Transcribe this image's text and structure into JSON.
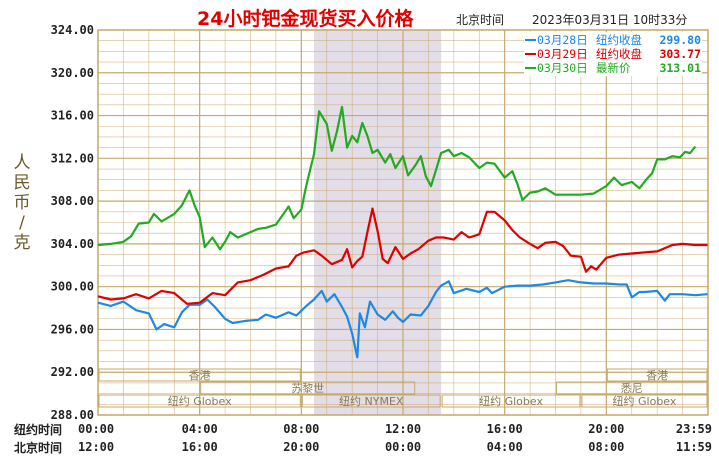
{
  "header": {
    "title": "24小时钯金现货买入价格",
    "tz_label": "北京时间",
    "timestamp": "2023年03月31日 10时33分"
  },
  "ylabel": "人民币/克",
  "row_labels": {
    "newyork": "纽约时间",
    "beijing": "北京时间"
  },
  "colors": {
    "mar28": "#1e88e5",
    "mar29": "#e00000",
    "mar30": "#22aa22",
    "title": "#e00000",
    "grid": "#c8a96a",
    "highlight": "#e2dde6"
  },
  "legend": [
    {
      "key": "mar28",
      "date": "03月28日",
      "label": "纽约收盘",
      "value": "299.80"
    },
    {
      "key": "mar29",
      "date": "03月29日",
      "label": "纽约收盘",
      "value": "303.77"
    },
    {
      "key": "mar30",
      "date": "03月30日",
      "label": "最新价",
      "value": "313.01"
    }
  ],
  "markets": [
    {
      "name": "香港",
      "from": 0,
      "to": 8
    },
    {
      "name": "苏黎世",
      "from": 4,
      "to": 12.5
    },
    {
      "name": "纽约 Globex",
      "from": 0,
      "to": 8
    },
    {
      "name": "纽约 NYMEX",
      "from": 8,
      "to": 13.5
    },
    {
      "name": "纽约 Globex",
      "from": 13.5,
      "to": 19
    },
    {
      "name": "香港",
      "from": 20,
      "to": 24
    },
    {
      "name": "悉尼",
      "from": 18,
      "to": 24
    },
    {
      "name": "纽约 Globex",
      "from": 19,
      "to": 24
    }
  ],
  "chart_data": {
    "type": "line",
    "x_unit": "hours since 纽约时间 00:00",
    "ylim": [
      288,
      324
    ],
    "yticks": [
      "324.00",
      "320.00",
      "316.00",
      "312.00",
      "308.00",
      "304.00",
      "300.00",
      "296.00",
      "292.00",
      "288.00"
    ],
    "xticks_ny": [
      "00:00",
      "04:00",
      "08:00",
      "12:00",
      "16:00",
      "20:00",
      "23:59"
    ],
    "xticks_bj": [
      "12:00",
      "16:00",
      "20:00",
      "00:00",
      "04:00",
      "08:00",
      "11:59"
    ],
    "highlight_range": [
      8.5,
      13.5
    ],
    "series": [
      {
        "name": "03月28日",
        "color_key": "mar28",
        "points": [
          [
            0,
            298.5
          ],
          [
            0.5,
            298.2
          ],
          [
            1,
            298.6
          ],
          [
            1.5,
            297.8
          ],
          [
            2,
            297.5
          ],
          [
            2.3,
            296
          ],
          [
            2.6,
            296.5
          ],
          [
            3,
            296.2
          ],
          [
            3.3,
            297.6
          ],
          [
            3.6,
            298.3
          ],
          [
            4,
            298.3
          ],
          [
            4.3,
            298.8
          ],
          [
            4.6,
            298.1
          ],
          [
            5,
            297
          ],
          [
            5.3,
            296.6
          ],
          [
            5.8,
            296.8
          ],
          [
            6.3,
            296.9
          ],
          [
            6.6,
            297.4
          ],
          [
            7,
            297.1
          ],
          [
            7.5,
            297.6
          ],
          [
            7.8,
            297.3
          ],
          [
            8.2,
            298.2
          ],
          [
            8.5,
            298.8
          ],
          [
            8.8,
            299.6
          ],
          [
            9,
            298.6
          ],
          [
            9.3,
            299.3
          ],
          [
            9.6,
            298.1
          ],
          [
            9.8,
            297.2
          ],
          [
            10,
            295.6
          ],
          [
            10.2,
            293.4
          ],
          [
            10.3,
            297.5
          ],
          [
            10.5,
            296.2
          ],
          [
            10.7,
            298.6
          ],
          [
            11,
            297.4
          ],
          [
            11.3,
            296.9
          ],
          [
            11.6,
            297.7
          ],
          [
            11.8,
            297.1
          ],
          [
            12,
            296.7
          ],
          [
            12.3,
            297.4
          ],
          [
            12.7,
            297.3
          ],
          [
            13,
            298.2
          ],
          [
            13.3,
            299.5
          ],
          [
            13.5,
            300.1
          ],
          [
            13.8,
            300.5
          ],
          [
            14,
            299.4
          ],
          [
            14.5,
            299.8
          ],
          [
            15,
            299.5
          ],
          [
            15.3,
            299.9
          ],
          [
            15.5,
            299.4
          ],
          [
            16,
            300
          ],
          [
            16.5,
            300.1
          ],
          [
            17,
            300.1
          ],
          [
            17.5,
            300.2
          ],
          [
            18,
            300.4
          ],
          [
            18.5,
            300.6
          ],
          [
            19,
            300.4
          ],
          [
            19.5,
            300.3
          ],
          [
            20,
            300.3
          ],
          [
            20.5,
            300.2
          ],
          [
            20.8,
            300.2
          ],
          [
            21,
            299
          ],
          [
            21.3,
            299.5
          ],
          [
            21.5,
            299.5
          ],
          [
            22,
            299.6
          ],
          [
            22.3,
            298.7
          ],
          [
            22.5,
            299.3
          ],
          [
            23,
            299.3
          ],
          [
            23.5,
            299.2
          ],
          [
            23.98,
            299.3
          ]
        ]
      },
      {
        "name": "03月29日",
        "color_key": "mar29",
        "points": [
          [
            0,
            299.1
          ],
          [
            0.5,
            298.8
          ],
          [
            1,
            298.9
          ],
          [
            1.5,
            299.3
          ],
          [
            2,
            298.9
          ],
          [
            2.5,
            299.6
          ],
          [
            3,
            299.4
          ],
          [
            3.5,
            298.4
          ],
          [
            4,
            298.5
          ],
          [
            4.5,
            299.4
          ],
          [
            5,
            299.2
          ],
          [
            5.5,
            300.4
          ],
          [
            6,
            300.6
          ],
          [
            6.5,
            301.1
          ],
          [
            7,
            301.7
          ],
          [
            7.5,
            301.9
          ],
          [
            7.8,
            302.9
          ],
          [
            8.1,
            303.2
          ],
          [
            8.5,
            303.4
          ],
          [
            8.8,
            302.9
          ],
          [
            9.2,
            302.1
          ],
          [
            9.6,
            302.5
          ],
          [
            9.8,
            303.5
          ],
          [
            10,
            301.8
          ],
          [
            10.2,
            302.4
          ],
          [
            10.4,
            302.8
          ],
          [
            10.6,
            305.1
          ],
          [
            10.8,
            307.3
          ],
          [
            11,
            305.2
          ],
          [
            11.2,
            302.6
          ],
          [
            11.4,
            302.2
          ],
          [
            11.7,
            303.7
          ],
          [
            12,
            302.6
          ],
          [
            12.3,
            303.1
          ],
          [
            12.6,
            303.5
          ],
          [
            13,
            304.3
          ],
          [
            13.3,
            304.6
          ],
          [
            13.6,
            304.6
          ],
          [
            14,
            304.4
          ],
          [
            14.3,
            305.1
          ],
          [
            14.6,
            304.6
          ],
          [
            15,
            304.9
          ],
          [
            15.3,
            307
          ],
          [
            15.6,
            307
          ],
          [
            16,
            306.2
          ],
          [
            16.3,
            305.3
          ],
          [
            16.6,
            304.6
          ],
          [
            17,
            304
          ],
          [
            17.3,
            303.6
          ],
          [
            17.6,
            304.1
          ],
          [
            18,
            304.2
          ],
          [
            18.3,
            303.8
          ],
          [
            18.6,
            302.9
          ],
          [
            19,
            302.8
          ],
          [
            19.2,
            301.4
          ],
          [
            19.4,
            301.9
          ],
          [
            19.6,
            301.6
          ],
          [
            20,
            302.7
          ],
          [
            20.5,
            303
          ],
          [
            21,
            303.1
          ],
          [
            21.5,
            303.2
          ],
          [
            22,
            303.3
          ],
          [
            22.4,
            303.7
          ],
          [
            22.6,
            303.9
          ],
          [
            23,
            304
          ],
          [
            23.5,
            303.9
          ],
          [
            23.98,
            303.9
          ]
        ]
      },
      {
        "name": "03月30日",
        "color_key": "mar30",
        "points": [
          [
            0,
            303.9
          ],
          [
            0.5,
            304
          ],
          [
            1,
            304.2
          ],
          [
            1.3,
            304.7
          ],
          [
            1.6,
            305.9
          ],
          [
            2,
            306
          ],
          [
            2.2,
            306.8
          ],
          [
            2.5,
            306.1
          ],
          [
            3,
            306.8
          ],
          [
            3.3,
            307.6
          ],
          [
            3.6,
            309
          ],
          [
            3.8,
            307.6
          ],
          [
            4,
            306.5
          ],
          [
            4.2,
            303.7
          ],
          [
            4.5,
            304.6
          ],
          [
            4.8,
            303.5
          ],
          [
            5,
            304.2
          ],
          [
            5.2,
            305.1
          ],
          [
            5.5,
            304.6
          ],
          [
            6,
            305.1
          ],
          [
            6.3,
            305.4
          ],
          [
            6.6,
            305.5
          ],
          [
            7,
            305.8
          ],
          [
            7.3,
            306.8
          ],
          [
            7.5,
            307.5
          ],
          [
            7.7,
            306.4
          ],
          [
            8,
            307.2
          ],
          [
            8.2,
            309.5
          ],
          [
            8.5,
            312.4
          ],
          [
            8.7,
            316.4
          ],
          [
            9,
            315.2
          ],
          [
            9.2,
            312.7
          ],
          [
            9.4,
            314.5
          ],
          [
            9.6,
            316.8
          ],
          [
            9.8,
            313
          ],
          [
            10,
            314.1
          ],
          [
            10.2,
            313.5
          ],
          [
            10.4,
            315.3
          ],
          [
            10.6,
            314.1
          ],
          [
            10.8,
            312.5
          ],
          [
            11,
            312.8
          ],
          [
            11.3,
            311.6
          ],
          [
            11.5,
            312.4
          ],
          [
            11.7,
            311.1
          ],
          [
            12,
            312.2
          ],
          [
            12.2,
            310.4
          ],
          [
            12.5,
            311.4
          ],
          [
            12.7,
            312.2
          ],
          [
            12.9,
            310.3
          ],
          [
            13.1,
            309.4
          ],
          [
            13.3,
            310.9
          ],
          [
            13.5,
            312.5
          ],
          [
            13.8,
            312.8
          ],
          [
            14,
            312.2
          ],
          [
            14.3,
            312.5
          ],
          [
            14.6,
            312.1
          ],
          [
            15,
            311.1
          ],
          [
            15.3,
            311.6
          ],
          [
            15.6,
            311.5
          ],
          [
            16,
            310.2
          ],
          [
            16.3,
            310.8
          ],
          [
            16.5,
            309.6
          ],
          [
            16.7,
            308.1
          ],
          [
            17,
            308.8
          ],
          [
            17.3,
            308.9
          ],
          [
            17.6,
            309.2
          ],
          [
            18,
            308.6
          ],
          [
            18.5,
            308.6
          ],
          [
            19,
            308.6
          ],
          [
            19.5,
            308.7
          ],
          [
            20,
            309.4
          ],
          [
            20.3,
            310.2
          ],
          [
            20.6,
            309.5
          ],
          [
            21,
            309.8
          ],
          [
            21.3,
            309.2
          ],
          [
            21.6,
            310.1
          ],
          [
            21.8,
            310.6
          ],
          [
            22,
            311.9
          ],
          [
            22.3,
            311.9
          ],
          [
            22.6,
            312.2
          ],
          [
            22.9,
            312.1
          ],
          [
            23.1,
            312.6
          ],
          [
            23.3,
            312.5
          ],
          [
            23.5,
            313.1
          ]
        ]
      }
    ]
  }
}
